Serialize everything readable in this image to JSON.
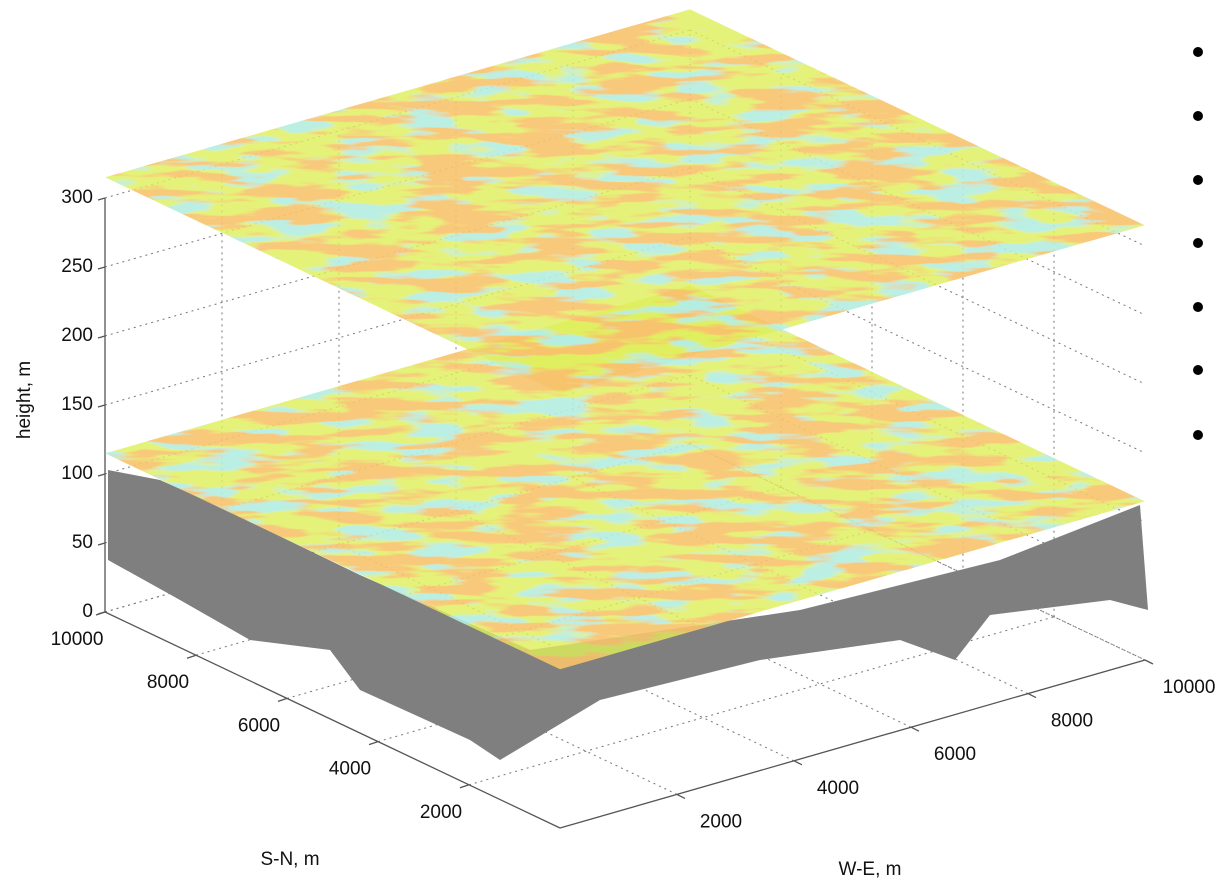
{
  "chart_data": {
    "type": "surface3d",
    "xlabel": "W-E, m",
    "ylabel": "S-N, m",
    "zlabel": "height, m",
    "xlim": [
      0,
      10000
    ],
    "xticks": [
      2000,
      4000,
      6000,
      8000,
      10000
    ],
    "ylim": [
      0,
      10000
    ],
    "yticks": [
      2000,
      4000,
      6000,
      8000,
      10000
    ],
    "zlim": [
      0,
      300
    ],
    "zticks": [
      0,
      50,
      100,
      150,
      200,
      250,
      300
    ],
    "values": [
      115,
      315
    ],
    "color": "#dfee5a",
    "grid": true
  }
}
